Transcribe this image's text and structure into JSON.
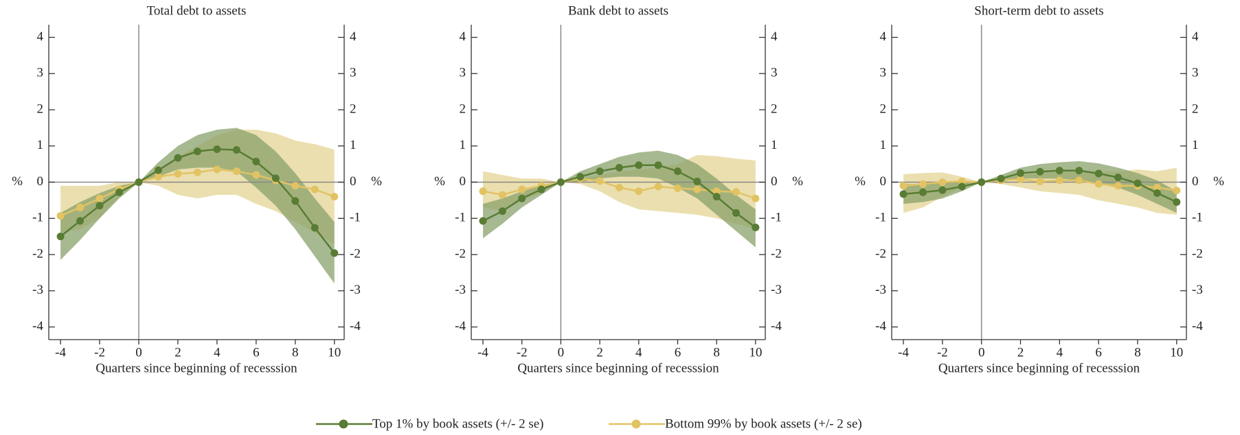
{
  "chart_data": [
    {
      "type": "line",
      "title": "Total debt to assets",
      "xlabel": "Quarters since beginning of recesssion",
      "ylabel": "%",
      "y2label": "%",
      "x": [
        -4,
        -3,
        -2,
        -1,
        0,
        1,
        2,
        3,
        4,
        5,
        6,
        7,
        8,
        9,
        10
      ],
      "xlim": [
        -4.6,
        10.5
      ],
      "xticks": [
        -4,
        -2,
        0,
        2,
        4,
        6,
        8,
        10
      ],
      "ylim": [
        -4.35,
        4.35
      ],
      "yticks": [
        -4,
        -3,
        -2,
        -1,
        0,
        1,
        2,
        3,
        4
      ],
      "y2lim": [
        -4.35,
        4.35
      ],
      "y2ticks": [
        -4,
        -3,
        -2,
        -1,
        0,
        1,
        2,
        3,
        4
      ],
      "series": [
        {
          "name": "Bottom 99% by book assets (+/- 2 se)",
          "color": "#e2c363",
          "band_color": "#e9dca6",
          "values": [
            -0.93,
            -0.7,
            -0.45,
            -0.2,
            0,
            0.15,
            0.23,
            0.27,
            0.35,
            0.3,
            0.2,
            0.05,
            -0.1,
            -0.2,
            -0.4
          ],
          "upper": [
            -0.1,
            -0.1,
            -0.1,
            0,
            0,
            0.3,
            0.7,
            1.0,
            1.3,
            1.45,
            1.45,
            1.35,
            1.15,
            1.05,
            0.9
          ],
          "lower": [
            -1.4,
            -1.3,
            -1.0,
            -0.4,
            0,
            -0.1,
            -0.35,
            -0.45,
            -0.35,
            -0.35,
            -0.6,
            -0.8,
            -1.1,
            -1.4,
            -1.7
          ]
        },
        {
          "name": "Top 1% by book assets (+/- 2 se)",
          "color": "#587c33",
          "band_color": "#8aa26b",
          "values": [
            -1.5,
            -1.07,
            -0.65,
            -0.28,
            0,
            0.33,
            0.67,
            0.85,
            0.91,
            0.89,
            0.57,
            0.11,
            -0.52,
            -1.26,
            -1.96
          ],
          "upper": [
            -0.85,
            -0.55,
            -0.3,
            -0.1,
            0,
            0.55,
            1.0,
            1.3,
            1.45,
            1.5,
            1.3,
            0.85,
            0.25,
            -0.45,
            -1.1
          ],
          "lower": [
            -2.15,
            -1.6,
            -1.0,
            -0.45,
            0,
            0.15,
            0.35,
            0.4,
            0.4,
            0.3,
            -0.15,
            -0.65,
            -1.3,
            -2.05,
            -2.8
          ]
        }
      ]
    },
    {
      "type": "line",
      "title": "Bank debt to assets",
      "xlabel": "Quarters since beginning of recesssion",
      "ylabel": "%",
      "y2label": "%",
      "x": [
        -4,
        -3,
        -2,
        -1,
        0,
        1,
        2,
        3,
        4,
        5,
        6,
        7,
        8,
        9,
        10
      ],
      "xlim": [
        -4.6,
        10.5
      ],
      "xticks": [
        -4,
        -2,
        0,
        2,
        4,
        6,
        8,
        10
      ],
      "ylim": [
        -4.35,
        4.35
      ],
      "yticks": [
        -4,
        -3,
        -2,
        -1,
        0,
        1,
        2,
        3,
        4
      ],
      "y2lim": [
        -4.35,
        4.35
      ],
      "y2ticks": [
        -4,
        -3,
        -2,
        -1,
        0,
        1,
        2,
        3,
        4
      ],
      "series": [
        {
          "color": "#e2c363",
          "band_color": "#e9dca6",
          "values": [
            -0.25,
            -0.35,
            -0.2,
            -0.1,
            0,
            0.1,
            0.03,
            -0.15,
            -0.25,
            -0.12,
            -0.17,
            -0.2,
            -0.25,
            -0.27,
            -0.45
          ],
          "upper": [
            0.3,
            0.2,
            0.1,
            0.1,
            0,
            0.1,
            0.2,
            0.3,
            0.35,
            0.4,
            0.5,
            0.75,
            0.72,
            0.65,
            0.6
          ],
          "lower": [
            -0.7,
            -0.8,
            -0.5,
            -0.3,
            0,
            -0.05,
            -0.25,
            -0.55,
            -0.75,
            -0.8,
            -0.85,
            -0.9,
            -1.0,
            -1.15,
            -1.3
          ]
        },
        {
          "color": "#587c33",
          "band_color": "#8aa26b",
          "values": [
            -1.07,
            -0.8,
            -0.45,
            -0.2,
            0,
            0.15,
            0.3,
            0.4,
            0.47,
            0.47,
            0.3,
            0.02,
            -0.4,
            -0.85,
            -1.25
          ],
          "upper": [
            -0.6,
            -0.45,
            -0.25,
            -0.1,
            0,
            0.3,
            0.5,
            0.7,
            0.82,
            0.87,
            0.75,
            0.5,
            0.1,
            -0.35,
            -0.75
          ],
          "lower": [
            -1.55,
            -1.15,
            -0.7,
            -0.35,
            0,
            0.0,
            0.1,
            0.15,
            0.15,
            0.1,
            -0.15,
            -0.45,
            -0.9,
            -1.35,
            -1.8
          ]
        }
      ]
    },
    {
      "type": "line",
      "title": "Short-term debt to assets",
      "xlabel": "Quarters since beginning of recesssion",
      "ylabel": "%",
      "y2label": "%",
      "x": [
        -4,
        -3,
        -2,
        -1,
        0,
        1,
        2,
        3,
        4,
        5,
        6,
        7,
        8,
        9,
        10
      ],
      "xlim": [
        -4.6,
        10.5
      ],
      "xticks": [
        -4,
        -2,
        0,
        2,
        4,
        6,
        8,
        10
      ],
      "ylim": [
        -4.35,
        4.35
      ],
      "yticks": [
        -4,
        -3,
        -2,
        -1,
        0,
        1,
        2,
        3,
        4
      ],
      "y2lim": [
        -4.35,
        4.35
      ],
      "y2ticks": [
        -4,
        -3,
        -2,
        -1,
        0,
        1,
        2,
        3,
        4
      ],
      "series": [
        {
          "color": "#e2c363",
          "band_color": "#e9dca6",
          "values": [
            -0.1,
            -0.05,
            0,
            0.02,
            0,
            0.05,
            0.08,
            0.02,
            0.05,
            0.05,
            -0.05,
            -0.1,
            -0.1,
            -0.15,
            -0.23
          ],
          "upper": [
            0.22,
            0.25,
            0.27,
            0.15,
            0,
            0.1,
            0.2,
            0.25,
            0.28,
            0.3,
            0.3,
            0.3,
            0.35,
            0.3,
            0.4
          ],
          "lower": [
            -0.85,
            -0.7,
            -0.4,
            -0.15,
            0,
            -0.05,
            -0.15,
            -0.25,
            -0.3,
            -0.35,
            -0.5,
            -0.6,
            -0.7,
            -0.85,
            -0.9
          ]
        },
        {
          "color": "#587c33",
          "band_color": "#8aa26b",
          "values": [
            -0.33,
            -0.28,
            -0.22,
            -0.12,
            0,
            0.1,
            0.25,
            0.29,
            0.32,
            0.32,
            0.24,
            0.13,
            -0.03,
            -0.3,
            -0.55
          ],
          "upper": [
            -0.05,
            -0.05,
            0,
            0,
            0,
            0.2,
            0.4,
            0.5,
            0.55,
            0.58,
            0.52,
            0.4,
            0.25,
            0.05,
            -0.25
          ],
          "lower": [
            -0.6,
            -0.55,
            -0.45,
            -0.25,
            0,
            0.0,
            0.1,
            0.1,
            0.1,
            0.05,
            -0.05,
            -0.15,
            -0.35,
            -0.6,
            -0.85
          ]
        }
      ]
    }
  ]
}
